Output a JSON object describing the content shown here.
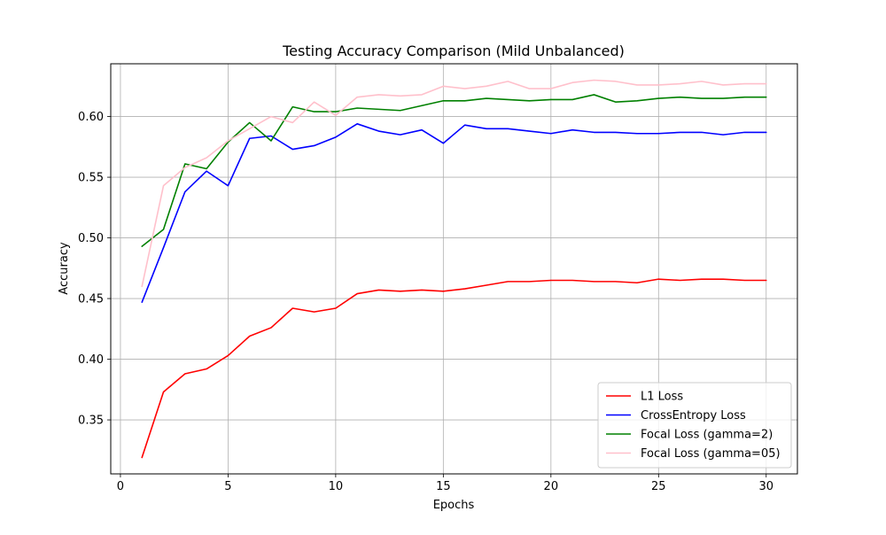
{
  "chart_data": {
    "type": "line",
    "title": "Testing Accuracy Comparison (Mild Unbalanced)",
    "xlabel": "Epochs",
    "ylabel": "Accuracy",
    "xlim": [
      -0.45,
      31.45
    ],
    "ylim": [
      0.3055,
      0.6435
    ],
    "x_ticks": [
      0,
      5,
      10,
      15,
      20,
      25,
      30
    ],
    "y_ticks": [
      0.35,
      0.4,
      0.45,
      0.5,
      0.55,
      0.6
    ],
    "grid": true,
    "legend_position": "lower-right",
    "x": [
      1,
      2,
      3,
      4,
      5,
      6,
      7,
      8,
      9,
      10,
      11,
      12,
      13,
      14,
      15,
      16,
      17,
      18,
      19,
      20,
      21,
      22,
      23,
      24,
      25,
      26,
      27,
      28,
      29,
      30
    ],
    "series": [
      {
        "name": "L1 Loss",
        "color": "#ff0000",
        "values": [
          0.319,
          0.373,
          0.388,
          0.392,
          0.403,
          0.419,
          0.426,
          0.442,
          0.439,
          0.442,
          0.454,
          0.457,
          0.456,
          0.457,
          0.456,
          0.458,
          0.461,
          0.464,
          0.464,
          0.465,
          0.465,
          0.464,
          0.464,
          0.463,
          0.466,
          0.465,
          0.466,
          0.466,
          0.465,
          0.465
        ]
      },
      {
        "name": "CrossEntropy Loss",
        "color": "#0000ff",
        "values": [
          0.447,
          0.492,
          0.538,
          0.555,
          0.543,
          0.582,
          0.584,
          0.573,
          0.576,
          0.583,
          0.594,
          0.588,
          0.585,
          0.589,
          0.578,
          0.593,
          0.59,
          0.59,
          0.588,
          0.586,
          0.589,
          0.587,
          0.587,
          0.586,
          0.586,
          0.587,
          0.587,
          0.585,
          0.587,
          0.587
        ]
      },
      {
        "name": "Focal Loss (gamma=2)",
        "color": "#008000",
        "values": [
          0.493,
          0.507,
          0.561,
          0.557,
          0.579,
          0.595,
          0.58,
          0.608,
          0.604,
          0.604,
          0.607,
          0.606,
          0.605,
          0.609,
          0.613,
          0.613,
          0.615,
          0.614,
          0.613,
          0.614,
          0.614,
          0.618,
          0.612,
          0.613,
          0.615,
          0.616,
          0.615,
          0.615,
          0.616,
          0.616
        ]
      },
      {
        "name": "Focal Loss (gamma=05)",
        "color": "#ffc0cb",
        "values": [
          0.46,
          0.543,
          0.558,
          0.566,
          0.58,
          0.59,
          0.6,
          0.595,
          0.612,
          0.601,
          0.616,
          0.618,
          0.617,
          0.618,
          0.625,
          0.623,
          0.625,
          0.629,
          0.623,
          0.623,
          0.628,
          0.63,
          0.629,
          0.626,
          0.626,
          0.627,
          0.629,
          0.626,
          0.627,
          0.627
        ]
      }
    ]
  }
}
